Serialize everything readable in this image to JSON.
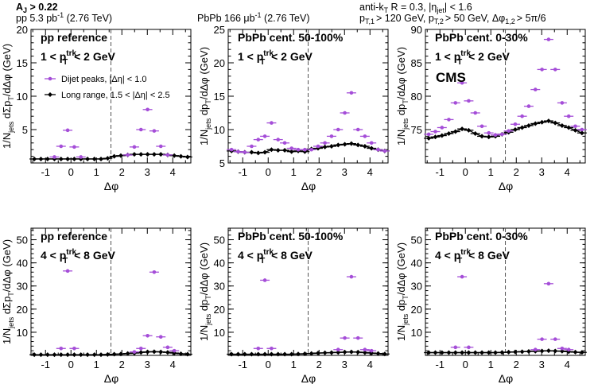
{
  "header": {
    "aj_cut": "A",
    "aj_sub": "J",
    "aj_val": " > 0.22",
    "pp_lumi_a": "pp 5.3 pb",
    "pp_lumi_sup": "-1",
    "pp_lumi_b": " (2.76 TeV)",
    "pbpb_lumi_a": "PbPb 166 μb",
    "pbpb_lumi_sup": "-1",
    "pbpb_lumi_b": " (2.76 TeV)",
    "algo_a": "anti-k",
    "algo_sub": "T",
    "algo_b": " R = 0.3,  |η",
    "algo_sub2": "jet",
    "algo_c": "| < 1.6",
    "cuts_a": "p",
    "cuts_s1": "T,1",
    "cuts_b": "> 120 GeV, p",
    "cuts_s2": "T,2",
    "cuts_c": "> 50 GeV, Δφ",
    "cuts_s3": "1,2",
    "cuts_d": "> 5π/6"
  },
  "legend": {
    "dijet_label": "Dijet peaks, |Δη| < 1.0",
    "long_range_label": "Long range, 1.5 < |Δη| < 2.5"
  },
  "cms_label": "CMS",
  "colors": {
    "dijet": "#a54ed8",
    "long_range": "#000000",
    "dashed": "#555555"
  },
  "chart_data": [
    {
      "type": "scatter",
      "title": "pp reference",
      "pt_bin": {
        "lo": "1 < p",
        "sup": "trk",
        "sub": "T",
        "hi": " < 2 GeV"
      },
      "ylabel": {
        "a": "1/N",
        "sub": "jets",
        "b": " dΣp",
        "sub2": "T",
        "c": "/dΔφ (GeV)"
      },
      "xlabel": "Δφ",
      "xlim": [
        -1.57,
        4.71
      ],
      "ylim": [
        0,
        20
      ],
      "xticks": [
        "-1",
        "0",
        "1",
        "2",
        "3",
        "4"
      ],
      "yticks": [
        "5",
        "10",
        "15",
        "20"
      ],
      "ytick_values": [
        5,
        10,
        15,
        20
      ],
      "divider": 1.5708,
      "x": [
        -1.44,
        -1.18,
        -0.92,
        -0.65,
        -0.39,
        -0.13,
        0.13,
        0.39,
        0.65,
        0.92,
        1.18,
        1.44,
        1.7,
        1.96,
        2.23,
        2.49,
        2.75,
        3.01,
        3.27,
        3.53,
        3.8,
        4.06,
        4.32,
        4.58
      ],
      "series": [
        {
          "name": "Dijet peaks, |Δη| < 1.0",
          "values": [
            null,
            null,
            null,
            0.9,
            2.5,
            4.9,
            2.4,
            0.9,
            null,
            null,
            null,
            null,
            null,
            null,
            1.2,
            2.4,
            5.0,
            8.0,
            4.8,
            2.5,
            1.2,
            null,
            null,
            null
          ]
        },
        {
          "name": "Long range, 1.5 < |Δη| < 2.5",
          "values": [
            0.6,
            0.6,
            0.6,
            0.6,
            0.6,
            0.6,
            0.6,
            0.6,
            0.6,
            0.6,
            0.6,
            0.7,
            1.0,
            1.1,
            1.2,
            1.3,
            1.3,
            1.3,
            1.3,
            1.3,
            1.2,
            1.1,
            1.0,
            0.9
          ]
        }
      ]
    },
    {
      "type": "scatter",
      "title": "PbPb cent. 50-100%",
      "pt_bin": {
        "lo": "1 < p",
        "sup": "trk",
        "sub": "T",
        "hi": " < 2 GeV"
      },
      "ylabel": {
        "a": "1/N",
        "sub": "jets",
        "b": " dp",
        "sub2": "T",
        "c": "/dΔφ (GeV)"
      },
      "xlabel": "Δφ",
      "xlim": [
        -1.57,
        4.71
      ],
      "ylim": [
        5,
        25
      ],
      "xticks": [
        "-1",
        "0",
        "1",
        "2",
        "3",
        "4"
      ],
      "yticks": [
        "5",
        "10",
        "15",
        "20",
        "25"
      ],
      "ytick_values": [
        5,
        10,
        15,
        20,
        25
      ],
      "divider": 1.5708,
      "x": [
        -1.44,
        -1.18,
        -0.92,
        -0.65,
        -0.39,
        -0.13,
        0.13,
        0.39,
        0.65,
        0.92,
        1.18,
        1.44,
        1.7,
        1.96,
        2.23,
        2.49,
        2.75,
        3.01,
        3.27,
        3.53,
        3.8,
        4.06,
        4.32,
        4.58
      ],
      "series": [
        {
          "name": "Dijet peaks, |Δη| < 1.0",
          "values": [
            7.0,
            6.7,
            6.6,
            7.5,
            8.5,
            9.0,
            11.0,
            8.5,
            8.0,
            7.2,
            7.0,
            7.0,
            7.0,
            7.5,
            8.0,
            9.0,
            10.0,
            12.5,
            15.5,
            10.0,
            9.0,
            8.0,
            7.0,
            6.8
          ]
        },
        {
          "name": "Long range, 1.5 < |Δη| < 2.5",
          "values": [
            6.8,
            6.7,
            6.6,
            6.6,
            6.5,
            6.6,
            7.0,
            6.9,
            6.9,
            6.7,
            6.8,
            6.7,
            7.1,
            7.2,
            7.4,
            7.5,
            7.7,
            7.8,
            7.9,
            7.7,
            7.5,
            7.2,
            7.0,
            6.8
          ]
        }
      ]
    },
    {
      "type": "scatter",
      "title": "PbPb cent. 0-30%",
      "pt_bin": {
        "lo": "1 < p",
        "sup": "trk",
        "sub": "T",
        "hi": " < 2 GeV"
      },
      "ylabel": {
        "a": "1/N",
        "sub": "jets",
        "b": " dp",
        "sub2": "T",
        "c": "/dΔφ (GeV)"
      },
      "xlabel": "Δφ",
      "xlim": [
        -1.57,
        4.71
      ],
      "ylim": [
        70,
        90
      ],
      "xticks": [
        "-1",
        "0",
        "1",
        "2",
        "3",
        "4"
      ],
      "yticks": [
        "75",
        "80",
        "85",
        "90"
      ],
      "ytick_values": [
        75,
        80,
        85,
        90
      ],
      "divider": 1.5708,
      "x": [
        -1.44,
        -1.18,
        -0.92,
        -0.65,
        -0.39,
        -0.13,
        0.13,
        0.39,
        0.65,
        0.92,
        1.18,
        1.44,
        1.7,
        1.96,
        2.23,
        2.49,
        2.75,
        3.01,
        3.27,
        3.53,
        3.8,
        4.06,
        4.32,
        4.58
      ],
      "series": [
        {
          "name": "Dijet peaks, |Δη| < 1.0",
          "values": [
            74.3,
            74.7,
            75.3,
            76.5,
            79.0,
            82.0,
            79.3,
            77.5,
            75.5,
            74.5,
            74.2,
            74.3,
            74.8,
            75.8,
            77.0,
            78.5,
            81.0,
            84.0,
            88.5,
            84.0,
            79.0,
            77.0,
            75.5,
            75.0
          ]
        },
        {
          "name": "Long range, 1.5 < |Δη| < 2.5",
          "values": [
            73.7,
            73.9,
            74.1,
            74.4,
            74.7,
            75.1,
            74.9,
            74.4,
            74.0,
            73.9,
            74.0,
            74.3,
            74.6,
            75.0,
            75.3,
            75.6,
            75.9,
            76.1,
            76.3,
            76.0,
            75.6,
            75.3,
            74.9,
            74.5
          ]
        }
      ]
    },
    {
      "type": "scatter",
      "title": "pp reference",
      "pt_bin": {
        "lo": "4 < p",
        "sup": "trk",
        "sub": "T",
        "hi": " < 8 GeV"
      },
      "ylabel": {
        "a": "1/N",
        "sub": "jets",
        "b": " dΣp",
        "sub2": "T",
        "c": "/dΔφ (GeV)"
      },
      "xlabel": "Δφ",
      "xlim": [
        -1.57,
        4.71
      ],
      "ylim": [
        0,
        55
      ],
      "xticks": [
        "-1",
        "0",
        "1",
        "2",
        "3",
        "4"
      ],
      "yticks": [
        "10",
        "20",
        "30",
        "40",
        "50"
      ],
      "ytick_values": [
        10,
        20,
        30,
        40,
        50
      ],
      "divider": 1.5708,
      "x": [
        -1.44,
        -1.18,
        -0.92,
        -0.65,
        -0.39,
        -0.13,
        0.13,
        0.39,
        0.65,
        0.92,
        1.18,
        1.44,
        1.7,
        1.96,
        2.23,
        2.49,
        2.75,
        3.01,
        3.27,
        3.53,
        3.8,
        4.06,
        4.32,
        4.58
      ],
      "series": [
        {
          "name": "Dijet peaks, |Δη| < 1.0",
          "values": [
            null,
            null,
            null,
            null,
            3.0,
            36.5,
            3.0,
            null,
            null,
            null,
            null,
            null,
            null,
            null,
            null,
            1.5,
            3.0,
            8.5,
            36.0,
            8.0,
            3.5,
            2.0,
            null,
            null
          ]
        },
        {
          "name": "Long range, 1.5 < |Δη| < 2.5",
          "values": [
            0.3,
            0.3,
            0.3,
            0.3,
            0.3,
            0.3,
            0.3,
            0.3,
            0.3,
            0.3,
            0.3,
            0.4,
            0.5,
            0.6,
            0.8,
            1.0,
            1.3,
            1.5,
            1.6,
            1.5,
            1.3,
            1.0,
            0.7,
            0.5
          ]
        }
      ]
    },
    {
      "type": "scatter",
      "title": "PbPb cent. 50-100%",
      "pt_bin": {
        "lo": "4 < p",
        "sup": "trk",
        "sub": "T",
        "hi": " < 8 GeV"
      },
      "ylabel": {
        "a": "1/N",
        "sub": "jets",
        "b": " dp",
        "sub2": "T",
        "c": "/dΔφ (GeV)"
      },
      "xlabel": "Δφ",
      "xlim": [
        -1.57,
        4.71
      ],
      "ylim": [
        0,
        55
      ],
      "xticks": [
        "-1",
        "0",
        "1",
        "2",
        "3",
        "4"
      ],
      "yticks": [
        "10",
        "20",
        "30",
        "40",
        "50"
      ],
      "ytick_values": [
        10,
        20,
        30,
        40,
        50
      ],
      "divider": 1.5708,
      "x": [
        -1.44,
        -1.18,
        -0.92,
        -0.65,
        -0.39,
        -0.13,
        0.13,
        0.39,
        0.65,
        0.92,
        1.18,
        1.44,
        1.7,
        1.96,
        2.23,
        2.49,
        2.75,
        3.01,
        3.27,
        3.53,
        3.8,
        4.06,
        4.32,
        4.58
      ],
      "series": [
        {
          "name": "Dijet peaks, |Δη| < 1.0",
          "values": [
            null,
            null,
            null,
            null,
            3.0,
            32.5,
            3.0,
            null,
            null,
            null,
            null,
            null,
            null,
            null,
            null,
            null,
            2.5,
            7.5,
            34.0,
            7.5,
            2.5,
            2.0,
            null,
            null
          ]
        },
        {
          "name": "Long range, 1.5 < |Δη| < 2.5",
          "values": [
            0.5,
            0.5,
            0.5,
            0.5,
            0.5,
            0.5,
            0.5,
            0.5,
            0.5,
            0.5,
            0.6,
            0.7,
            0.8,
            1.0,
            1.1,
            1.2,
            1.3,
            1.4,
            1.5,
            1.4,
            1.2,
            1.0,
            0.8,
            0.6
          ]
        }
      ]
    },
    {
      "type": "scatter",
      "title": "PbPb cent. 0-30%",
      "pt_bin": {
        "lo": "4 < p",
        "sup": "trk",
        "sub": "T",
        "hi": " < 8 GeV"
      },
      "ylabel": {
        "a": "1/N",
        "sub": "jets",
        "b": " dp",
        "sub2": "T",
        "c": "/dΔφ (GeV)"
      },
      "xlabel": "Δφ",
      "xlim": [
        -1.57,
        4.71
      ],
      "ylim": [
        0,
        55
      ],
      "xticks": [
        "-1",
        "0",
        "1",
        "2",
        "3",
        "4"
      ],
      "yticks": [
        "10",
        "20",
        "30",
        "40",
        "50"
      ],
      "ytick_values": [
        10,
        20,
        30,
        40,
        50
      ],
      "divider": 1.5708,
      "x": [
        -1.44,
        -1.18,
        -0.92,
        -0.65,
        -0.39,
        -0.13,
        0.13,
        0.39,
        0.65,
        0.92,
        1.18,
        1.44,
        1.7,
        1.96,
        2.23,
        2.49,
        2.75,
        3.01,
        3.27,
        3.53,
        3.8,
        4.06,
        4.32,
        4.58
      ],
      "series": [
        {
          "name": "Dijet peaks, |Δη| < 1.0",
          "values": [
            null,
            null,
            null,
            null,
            3.5,
            34.0,
            3.5,
            null,
            null,
            null,
            null,
            null,
            null,
            null,
            null,
            null,
            2.5,
            7.0,
            31.0,
            7.0,
            3.0,
            2.5,
            null,
            null
          ]
        },
        {
          "name": "Long range, 1.5 < |Δη| < 2.5",
          "values": [
            1.2,
            1.2,
            1.2,
            1.2,
            1.2,
            1.2,
            1.2,
            1.2,
            1.2,
            1.2,
            1.2,
            1.3,
            1.4,
            1.5,
            1.6,
            1.7,
            1.8,
            1.9,
            2.0,
            1.9,
            1.8,
            1.6,
            1.4,
            1.3
          ]
        }
      ]
    }
  ]
}
